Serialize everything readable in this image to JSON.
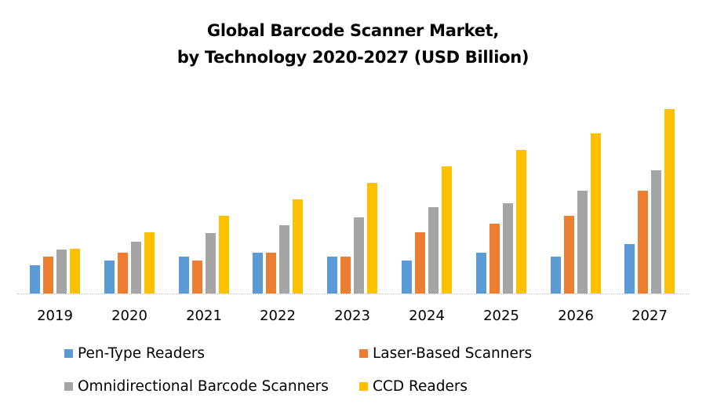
{
  "title": {
    "line1": "Global Barcode Scanner Market,",
    "line2": "by Technology 2020-2027 (USD Billion)"
  },
  "legend": [
    {
      "label": "Pen-Type Readers",
      "color": "#5b9bd5"
    },
    {
      "label": "Laser-Based Scanners",
      "color": "#ed7d31"
    },
    {
      "label": "Omnidirectional Barcode Scanners",
      "color": "#a5a5a5"
    },
    {
      "label": "CCD Readers",
      "color": "#ffc000"
    }
  ],
  "chart_data": {
    "type": "bar",
    "title": "Global Barcode Scanner Market, by Technology 2020-2027 (USD Billion)",
    "xlabel": "",
    "ylabel": "",
    "grid": false,
    "legend_position": "bottom",
    "categories": [
      "2019",
      "2020",
      "2021",
      "2022",
      "2023",
      "2024",
      "2025",
      "2026",
      "2027"
    ],
    "series": [
      {
        "name": "Pen-Type Readers",
        "color": "#5b9bd5",
        "values": [
          3.6,
          4.2,
          4.7,
          5.2,
          4.7,
          4.2,
          5.2,
          4.7,
          6.3
        ]
      },
      {
        "name": "Laser-Based Scanners",
        "color": "#ed7d31",
        "values": [
          4.7,
          5.2,
          4.2,
          5.2,
          4.7,
          7.8,
          8.9,
          9.9,
          13.1
        ]
      },
      {
        "name": "Omnidirectional Barcode Scanners",
        "color": "#a5a5a5",
        "values": [
          5.6,
          6.6,
          7.7,
          8.7,
          9.7,
          11.0,
          11.5,
          13.1,
          15.7
        ]
      },
      {
        "name": "CCD Readers",
        "color": "#ffc000",
        "values": [
          5.7,
          7.8,
          9.9,
          12.0,
          14.1,
          16.2,
          18.3,
          20.4,
          23.5
        ]
      }
    ],
    "note": "No y-axis shown; values are relative estimates from bar heights (10 px per unit)."
  }
}
